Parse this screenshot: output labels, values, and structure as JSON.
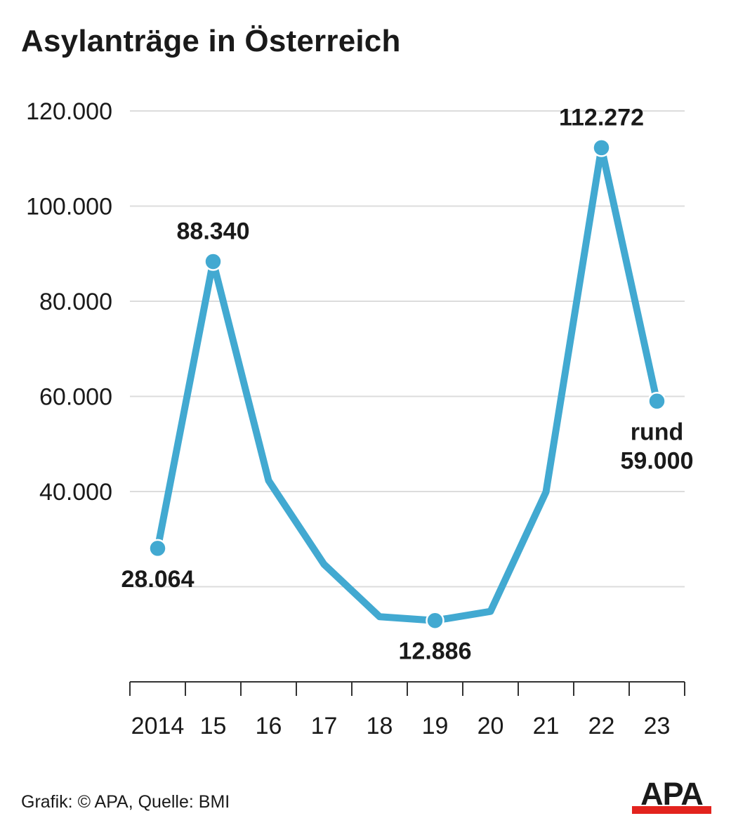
{
  "title": "Asylanträge in Österreich",
  "footer": "Grafik: © APA, Quelle: BMI",
  "logo": {
    "text": "APA",
    "text_color": "#1a1a1a",
    "bar_color": "#e3231e"
  },
  "colors": {
    "line": "#42a9d1",
    "grid": "#dcdcdc",
    "axis": "#333333",
    "text": "#1a1a1a"
  },
  "chart_data": {
    "type": "line",
    "title": "Asylanträge in Österreich",
    "xlabel": "",
    "ylabel": "",
    "x": [
      "2014",
      "15",
      "16",
      "17",
      "18",
      "19",
      "20",
      "21",
      "22",
      "23"
    ],
    "series": [
      {
        "values": [
          28064,
          88340,
          42300,
          24700,
          13700,
          12886,
          14800,
          39900,
          112272,
          59000
        ]
      }
    ],
    "ylim": [
      0,
      120000
    ],
    "yticks": [
      {
        "value": 120000,
        "label": "120.000"
      },
      {
        "value": 100000,
        "label": "100.000"
      },
      {
        "value": 80000,
        "label": "80.000"
      },
      {
        "value": 60000,
        "label": "60.000"
      },
      {
        "value": 40000,
        "label": "40.000"
      },
      {
        "value": 20000,
        "label": ""
      }
    ],
    "grid": true,
    "legend": "none",
    "annotations": [
      {
        "index": 0,
        "lines": [
          "28.064"
        ],
        "position": "below"
      },
      {
        "index": 1,
        "lines": [
          "88.340"
        ],
        "position": "above"
      },
      {
        "index": 5,
        "lines": [
          "12.886"
        ],
        "position": "below"
      },
      {
        "index": 8,
        "lines": [
          "112.272"
        ],
        "position": "above"
      },
      {
        "index": 9,
        "lines": [
          "rund",
          "59.000"
        ],
        "position": "below"
      }
    ]
  }
}
